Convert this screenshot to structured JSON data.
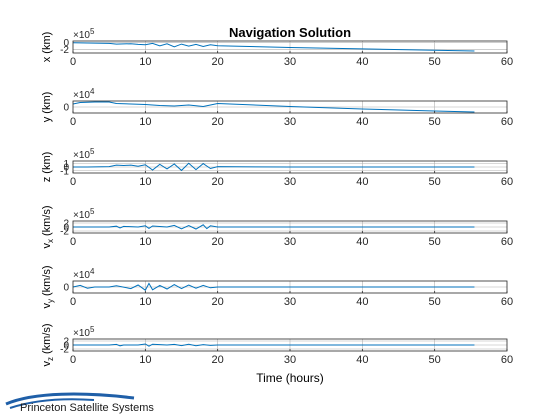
{
  "figure": {
    "title": "Navigation Solution",
    "xlabel": "Time (hours)"
  },
  "logo": {
    "text": "Princeton Satellite Systems",
    "swoosh_color": "#1f5fa8"
  },
  "colors": {
    "series": "#0072bd",
    "axes": "#262626",
    "grid": "#b0b0b0",
    "background": "#ffffff"
  },
  "chart_data": [
    {
      "type": "line",
      "ylabel": "x (km)",
      "ylabel_sub": "",
      "ylabel_tail": "",
      "multiplier_base": "×10",
      "multiplier_exp": "5",
      "xlim": [
        0,
        60
      ],
      "xticks": [
        0,
        10,
        20,
        30,
        40,
        50,
        60
      ],
      "ylim": [
        -3,
        0.5
      ],
      "yticks": [
        -2,
        0
      ],
      "ytick_labels": [
        "-2",
        "0"
      ],
      "grid": true,
      "x": [
        0,
        2,
        5,
        6,
        8,
        9,
        10,
        11,
        12,
        13,
        14,
        15,
        16,
        17,
        18,
        19,
        20,
        30,
        40,
        50,
        55.5
      ],
      "y": [
        0,
        -0.1,
        -0.2,
        -0.4,
        -0.3,
        -0.5,
        -0.6,
        -0.2,
        -0.9,
        -0.3,
        -1.2,
        -0.4,
        -1.0,
        -0.5,
        -1.1,
        -0.6,
        -0.9,
        -1.4,
        -1.8,
        -2.2,
        -2.4
      ]
    },
    {
      "type": "line",
      "ylabel": "y (km)",
      "ylabel_sub": "",
      "ylabel_tail": "",
      "multiplier_base": "×10",
      "multiplier_exp": "4",
      "xlim": [
        0,
        60
      ],
      "xticks": [
        0,
        10,
        20,
        30,
        40,
        50,
        60
      ],
      "ylim": [
        -1.2,
        1.2
      ],
      "yticks": [
        0
      ],
      "ytick_labels": [
        "0"
      ],
      "grid": true,
      "x": [
        0,
        1,
        3,
        5,
        6,
        8,
        10,
        12,
        14,
        16,
        18,
        20,
        30,
        40,
        50,
        55.5
      ],
      "y": [
        0.6,
        0.9,
        1.0,
        1.0,
        0.7,
        0.6,
        0.5,
        0.3,
        0.2,
        0.4,
        0.1,
        0.7,
        0.1,
        -0.4,
        -0.8,
        -1.0
      ]
    },
    {
      "type": "line",
      "ylabel": "z (km)",
      "ylabel_sub": "",
      "ylabel_tail": "",
      "multiplier_base": "×10",
      "multiplier_exp": "5",
      "xlim": [
        0,
        60
      ],
      "xticks": [
        0,
        10,
        20,
        30,
        40,
        50,
        60
      ],
      "ylim": [
        -1.6,
        1.6
      ],
      "yticks": [
        -1,
        0,
        1
      ],
      "ytick_labels": [
        "-1",
        "0",
        "1"
      ],
      "grid": true,
      "x": [
        0,
        2,
        5,
        6,
        7,
        8,
        9,
        10,
        11,
        12,
        13,
        14,
        15,
        16,
        17,
        18,
        19,
        20,
        30,
        40,
        50,
        55.5
      ],
      "y": [
        0,
        0,
        0.1,
        0.5,
        0.4,
        0.5,
        0.2,
        0.6,
        -0.8,
        0.7,
        -0.5,
        0.8,
        -0.9,
        1.0,
        -0.7,
        0.9,
        -0.4,
        0.1,
        0,
        0,
        0,
        0
      ]
    },
    {
      "type": "line",
      "ylabel": "v",
      "ylabel_sub": "x",
      "ylabel_tail": " (km/s)",
      "multiplier_base": "×10",
      "multiplier_exp": "5",
      "xlim": [
        0,
        60
      ],
      "xticks": [
        0,
        10,
        20,
        30,
        40,
        50,
        60
      ],
      "ylim": [
        -3,
        3
      ],
      "yticks": [
        -2,
        0,
        2
      ],
      "ytick_labels": [
        "-2",
        "0",
        "2"
      ],
      "grid": true,
      "x": [
        0,
        5,
        6,
        6.5,
        7,
        9,
        10,
        10.5,
        11,
        13,
        14,
        15,
        16,
        17,
        18,
        18.5,
        19,
        20,
        30,
        40,
        50,
        55.5
      ],
      "y": [
        0,
        0,
        0.4,
        -0.5,
        0.3,
        0,
        0.6,
        -0.7,
        0.5,
        0,
        0.8,
        -0.9,
        0.7,
        -1.0,
        1.1,
        -0.8,
        0.6,
        0,
        0,
        0,
        0,
        0
      ]
    },
    {
      "type": "line",
      "ylabel": "v",
      "ylabel_sub": "y",
      "ylabel_tail": " (km/s)",
      "multiplier_base": "×10",
      "multiplier_exp": "4",
      "xlim": [
        0,
        60
      ],
      "xticks": [
        0,
        10,
        20,
        30,
        40,
        50,
        60
      ],
      "ylim": [
        -1.5,
        1.5
      ],
      "yticks": [
        0
      ],
      "ytick_labels": [
        "0"
      ],
      "grid": true,
      "x": [
        0,
        1,
        2,
        3,
        5,
        6,
        8,
        9,
        10,
        10.5,
        11,
        12,
        13,
        14,
        15,
        16,
        17,
        18,
        19,
        20,
        30,
        40,
        50,
        55.5
      ],
      "y": [
        0,
        0.4,
        -0.3,
        0,
        0,
        0.3,
        -0.4,
        0.5,
        -0.8,
        0.9,
        -0.7,
        0.4,
        -0.5,
        0.6,
        -0.4,
        0.5,
        -0.3,
        0.4,
        -0.2,
        0,
        0,
        0,
        0,
        0
      ]
    },
    {
      "type": "line",
      "ylabel": "v",
      "ylabel_sub": "z",
      "ylabel_tail": " (km/s)",
      "multiplier_base": "×10",
      "multiplier_exp": "5",
      "xlim": [
        0,
        60
      ],
      "xticks": [
        0,
        10,
        20,
        30,
        40,
        50,
        60
      ],
      "ylim": [
        -3,
        3
      ],
      "yticks": [
        -2,
        0,
        2
      ],
      "ytick_labels": [
        "-2",
        "0",
        "2"
      ],
      "grid": true,
      "x": [
        0,
        5,
        6,
        6.5,
        7,
        9,
        10,
        10.5,
        11,
        13,
        14,
        15,
        16,
        17,
        18,
        19,
        20,
        30,
        40,
        50,
        55.5
      ],
      "y": [
        0,
        0,
        0.3,
        -0.4,
        0,
        0,
        0.5,
        -0.6,
        0.4,
        0,
        0.3,
        -0.3,
        0.4,
        -0.4,
        0.2,
        -0.2,
        0,
        0,
        0,
        0,
        0
      ]
    }
  ]
}
